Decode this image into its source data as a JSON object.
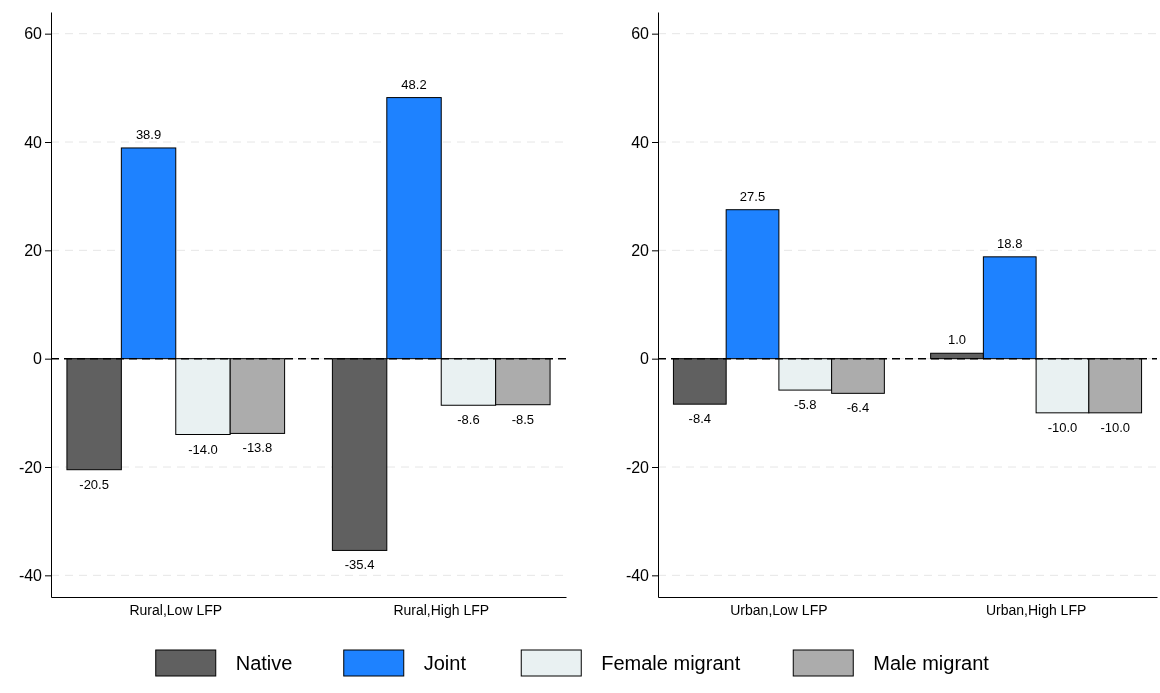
{
  "chart_data": [
    {
      "type": "bar",
      "categories": [
        "Rural,Low LFP",
        "Rural,High LFP"
      ],
      "ylim": [
        -44,
        64
      ],
      "yticks": [
        -40,
        -20,
        0,
        20,
        40,
        60
      ],
      "grid": "y",
      "legend": "bottom",
      "ref_lines": [
        {
          "axis": "y",
          "value": 0,
          "color": "#000000",
          "line_style": "dashed"
        }
      ],
      "series": [
        {
          "name": "Native",
          "color": "#606060",
          "values": [
            -20.5,
            -35.4
          ],
          "value_labels": [
            "-20.5",
            "-35.4"
          ]
        },
        {
          "name": "Joint",
          "color": "#1e82ff",
          "values": [
            38.9,
            48.2
          ],
          "value_labels": [
            "38.9",
            "48.2"
          ]
        },
        {
          "name": "Female migrant",
          "color": "#e9f1f2",
          "values": [
            -14.0,
            -8.6
          ],
          "value_labels": [
            "-14.0",
            "-8.6"
          ]
        },
        {
          "name": "Male migrant",
          "color": "#acacac",
          "values": [
            -13.8,
            -8.5
          ],
          "value_labels": [
            "-13.8",
            "-8.5"
          ]
        }
      ]
    },
    {
      "type": "bar",
      "categories": [
        "Urban,Low LFP",
        "Urban,High LFP"
      ],
      "ylim": [
        -44,
        64
      ],
      "yticks": [
        -40,
        -20,
        0,
        20,
        40,
        60
      ],
      "grid": "y",
      "ref_lines": [
        {
          "axis": "y",
          "value": 0,
          "color": "#000000",
          "line_style": "dashed"
        }
      ],
      "series": [
        {
          "color": "#606060",
          "values": [
            -8.4,
            1.0
          ],
          "value_labels": [
            "-8.4",
            "1.0"
          ]
        },
        {
          "color": "#1e82ff",
          "values": [
            27.5,
            18.8
          ],
          "value_labels": [
            "27.5",
            "18.8"
          ]
        },
        {
          "color": "#e9f1f2",
          "values": [
            -5.8,
            -10.0
          ],
          "value_labels": [
            "-5.8",
            "-10.0"
          ]
        },
        {
          "color": "#acacac",
          "values": [
            -6.4,
            -10.0
          ],
          "value_labels": [
            "-6.4",
            "-10.0"
          ]
        }
      ]
    }
  ]
}
